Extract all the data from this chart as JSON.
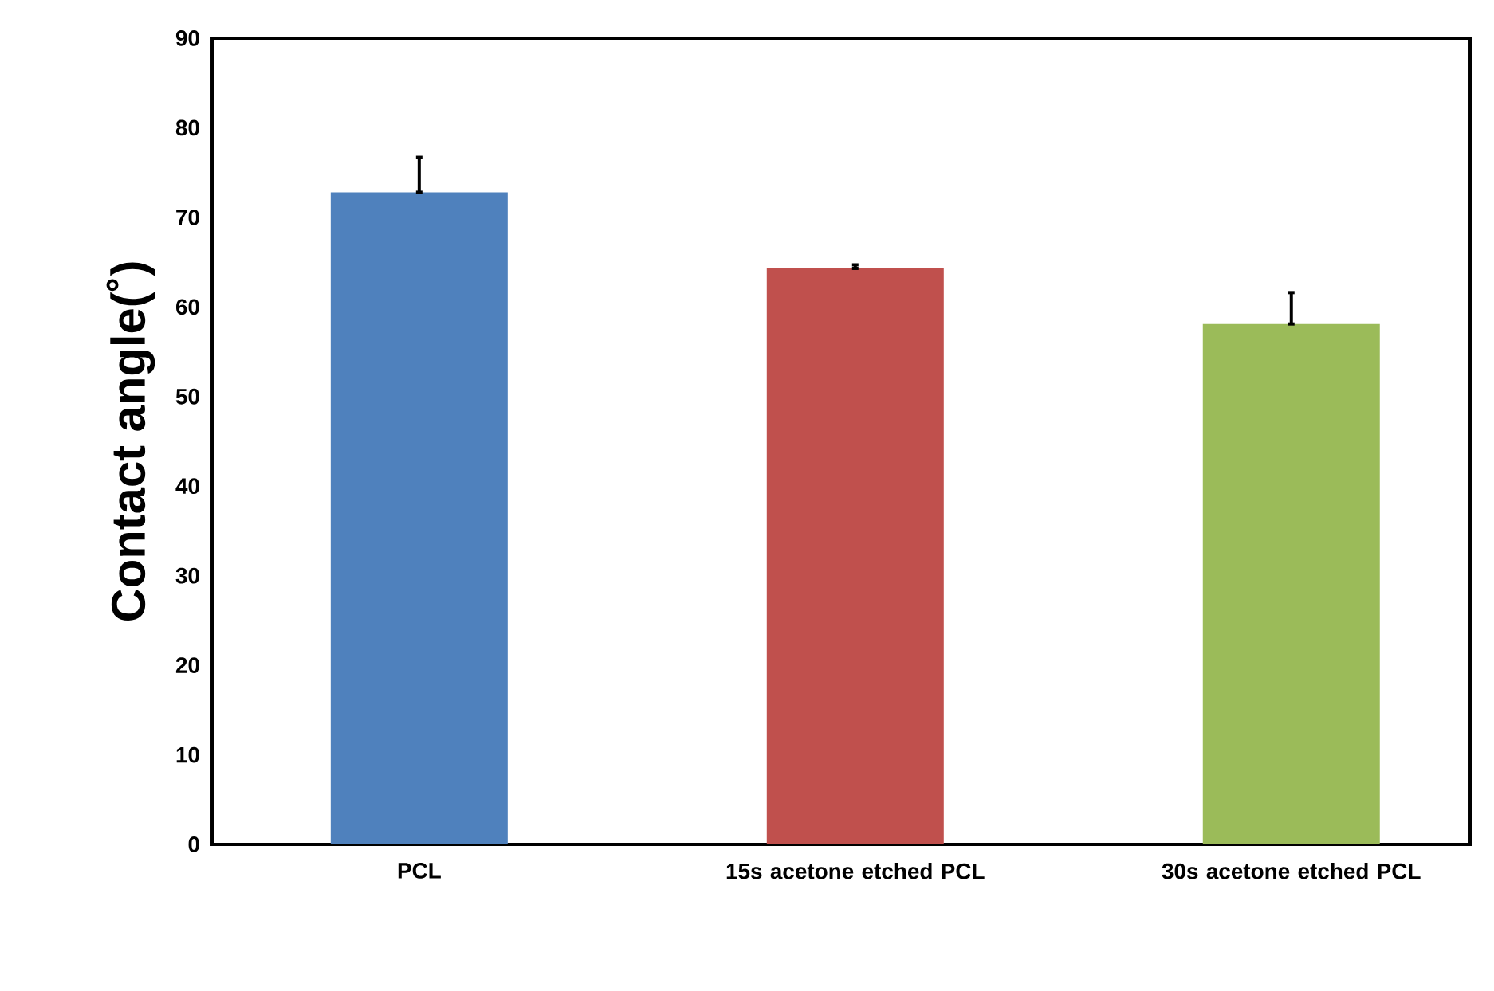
{
  "chart_data": {
    "type": "bar",
    "ylabel": "Contact angle(˚)",
    "categories": [
      "PCL",
      "15s acetone etched PCL",
      "30s acetone etched PCL"
    ],
    "values": [
      72.8,
      64.3,
      58.1
    ],
    "colors": [
      "#4f81bd",
      "#c0504d",
      "#9bbb59"
    ],
    "errors": [
      [
        72.8,
        76.7
      ],
      [
        64.3,
        64.7
      ],
      [
        58.1,
        61.6
      ]
    ],
    "ylim": [
      0,
      90
    ],
    "yticks": [
      0,
      10,
      20,
      30,
      40,
      50,
      60,
      70,
      80,
      90
    ],
    "grid": false
  }
}
